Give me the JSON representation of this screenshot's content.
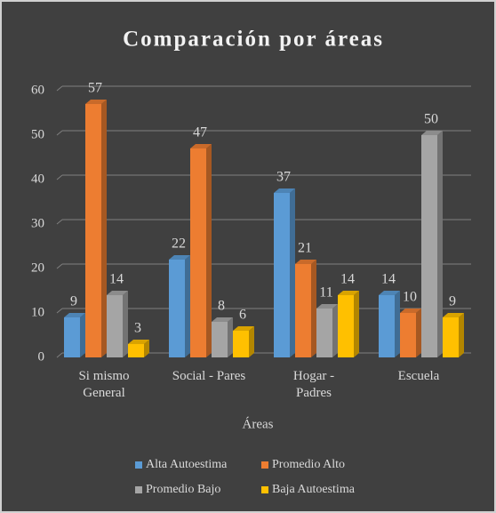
{
  "chart_data": {
    "type": "bar3d",
    "title": "Comparación por áreas",
    "x_label": "Áreas",
    "categories": [
      "Si mismo General",
      "Social - Pares",
      "Hogar - Padres",
      "Escuela"
    ],
    "series": [
      {
        "name": "Alta Autoestima",
        "color": "#5b9bd5",
        "values": [
          9,
          22,
          37,
          14
        ]
      },
      {
        "name": "Promedio Alto",
        "color": "#ed7d31",
        "values": [
          57,
          47,
          21,
          10
        ]
      },
      {
        "name": "Promedio Bajo",
        "color": "#a5a5a5",
        "values": [
          14,
          8,
          11,
          50
        ]
      },
      {
        "name": "Baja Autoestima",
        "color": "#ffc000",
        "values": [
          3,
          6,
          14,
          9
        ]
      }
    ],
    "ylim": [
      0,
      60
    ],
    "yticks": [
      0,
      10,
      20,
      30,
      40,
      50,
      60
    ],
    "grid": true,
    "legend": "bottom"
  }
}
